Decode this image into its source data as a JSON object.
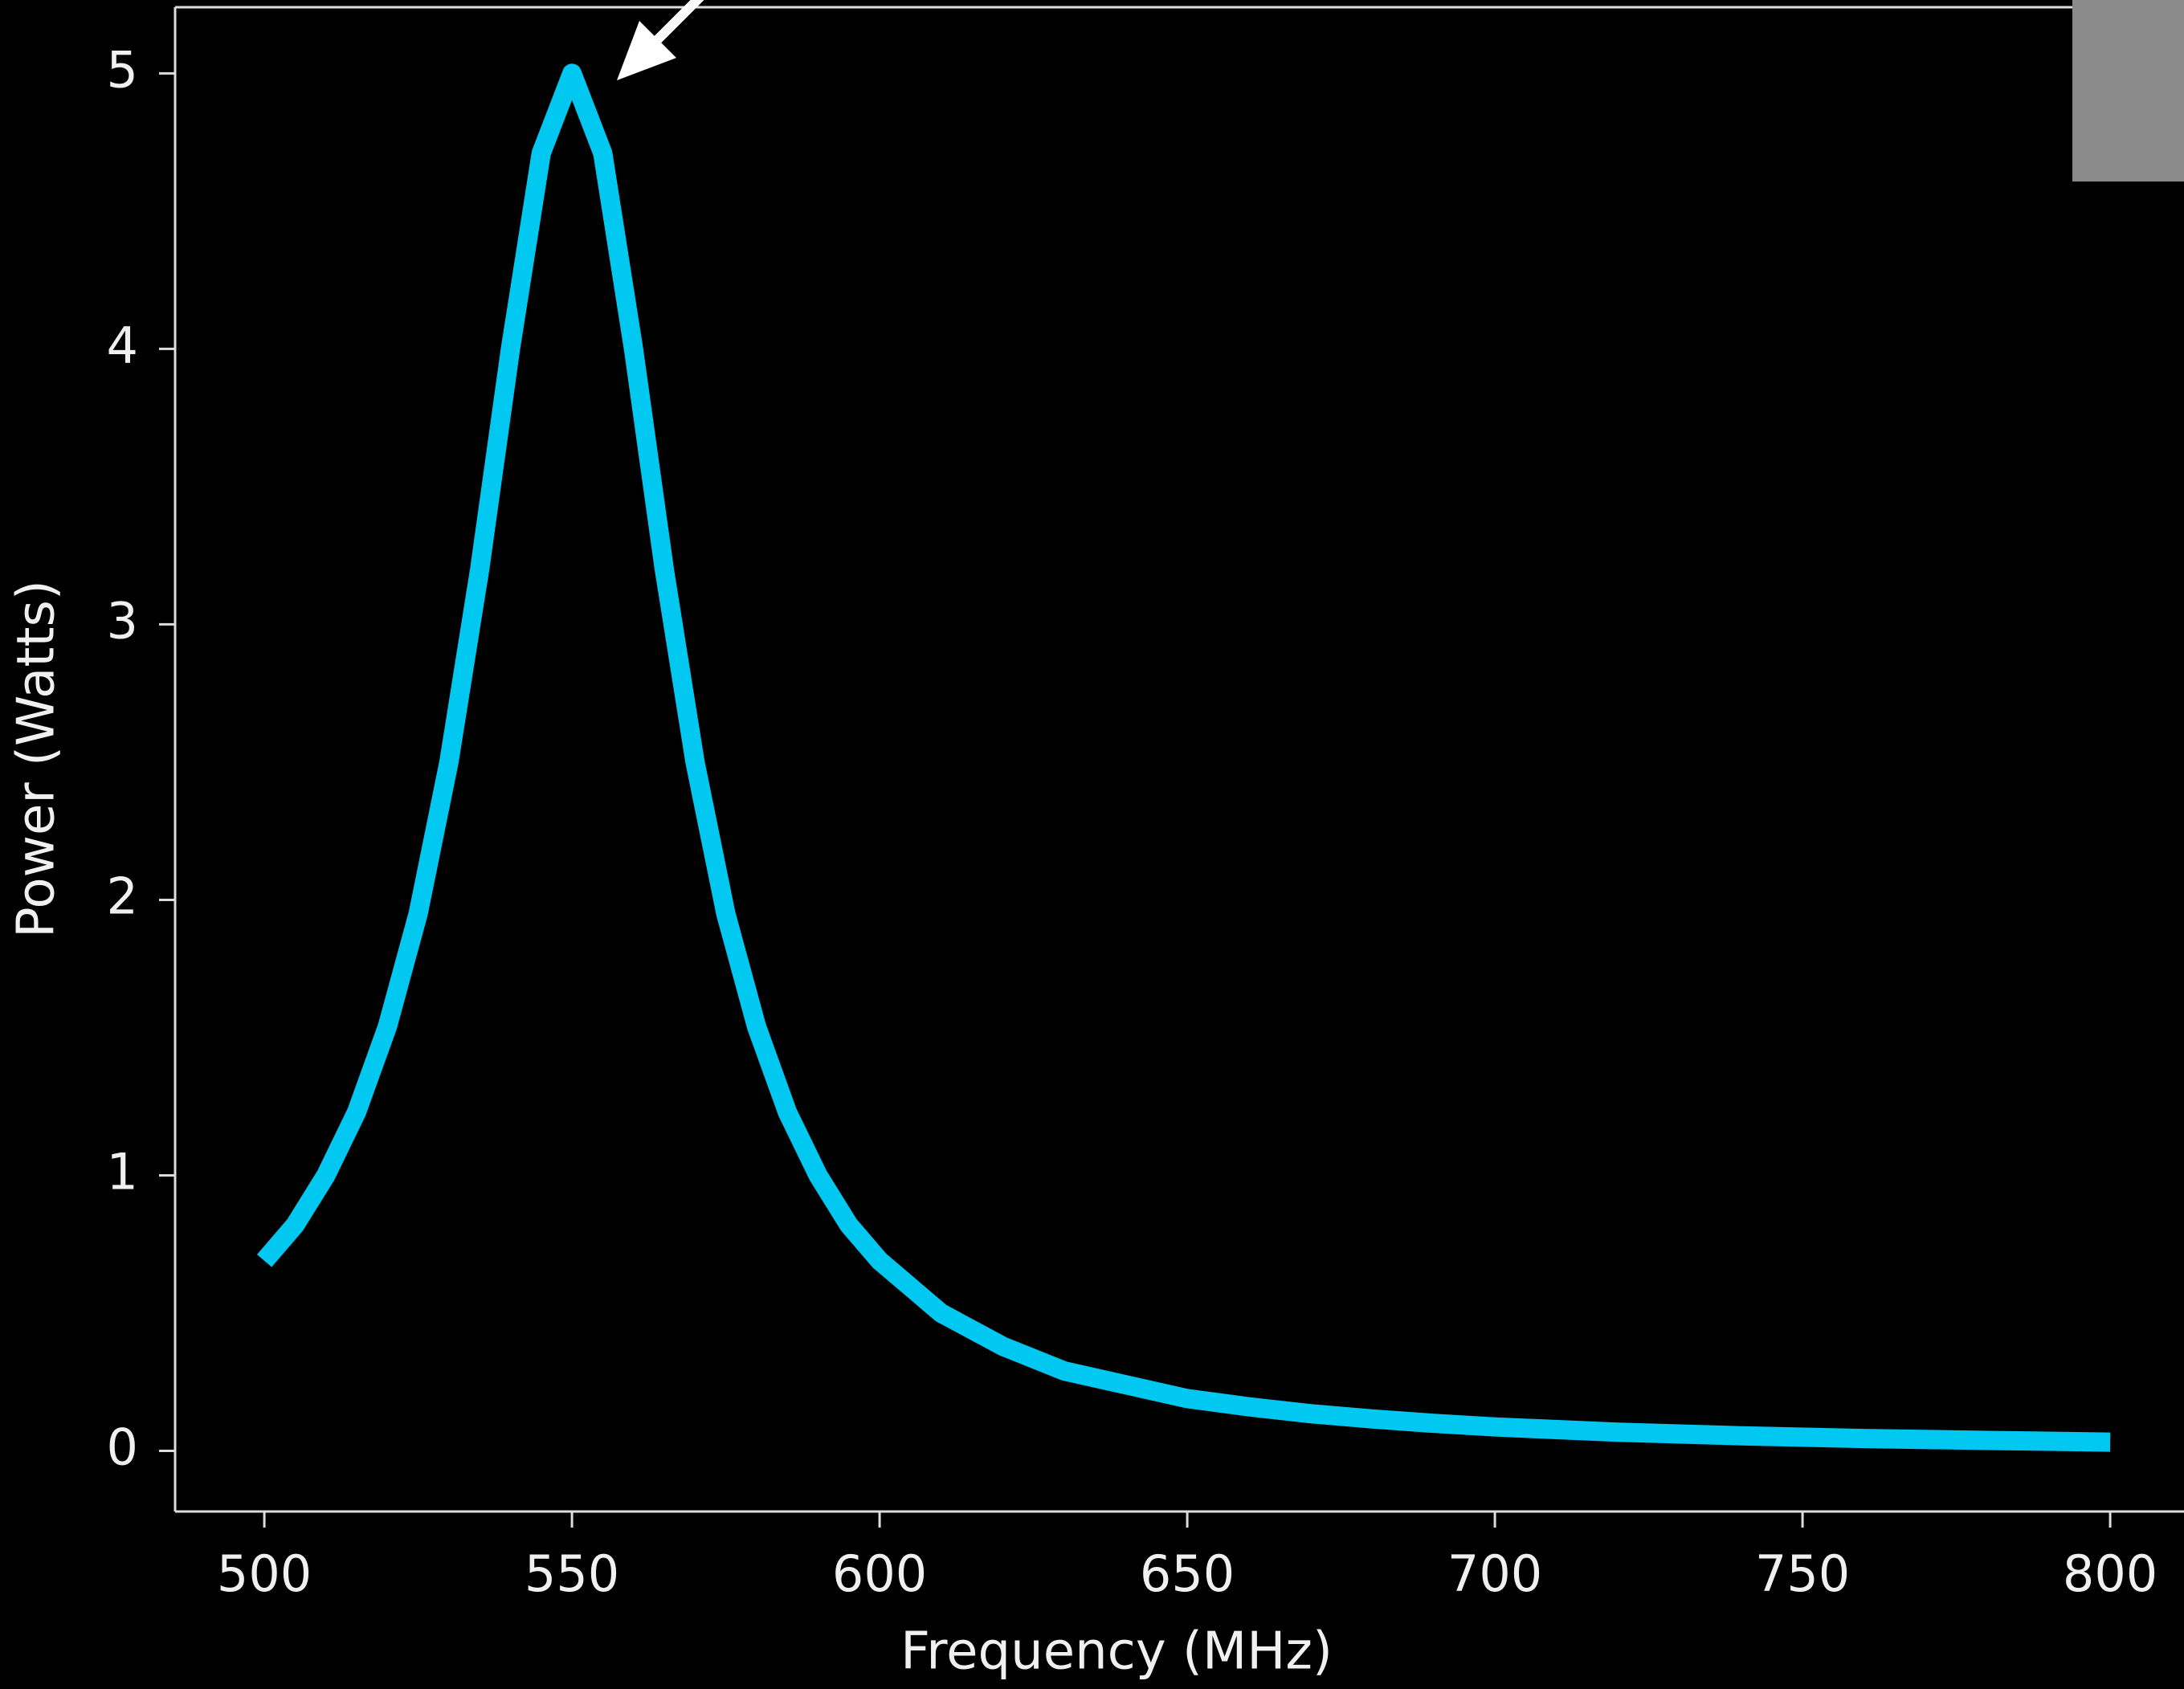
{
  "chart_data": {
    "type": "line",
    "xlabel": "Frequency (MHz)",
    "ylabel": "Power (Watts)",
    "x": [
      500,
      505,
      510,
      515,
      520,
      525,
      530,
      535,
      540,
      545,
      550,
      555,
      560,
      565,
      570,
      575,
      580,
      585,
      590,
      595,
      600,
      610,
      620,
      630,
      640,
      650,
      660,
      670,
      680,
      690,
      700,
      720,
      740,
      760,
      780,
      800
    ],
    "values": [
      0.69,
      0.82,
      1.0,
      1.23,
      1.54,
      1.95,
      2.5,
      3.2,
      4.0,
      4.71,
      5,
      4.71,
      4.0,
      3.2,
      2.5,
      1.95,
      1.54,
      1.23,
      1.0,
      0.82,
      0.69,
      0.5,
      0.38,
      0.29,
      0.24,
      0.19,
      0.16,
      0.135,
      0.116,
      0.1,
      0.087,
      0.068,
      0.055,
      0.045,
      0.038,
      0.032
    ],
    "color": "#00c8f0",
    "xlim": [
      485.5,
      812
    ],
    "ylim": [
      -0.22,
      5.24
    ],
    "xticks": [
      500,
      550,
      600,
      650,
      700,
      750,
      800
    ],
    "yticks": [
      0,
      1,
      2,
      3,
      4,
      5
    ]
  }
}
